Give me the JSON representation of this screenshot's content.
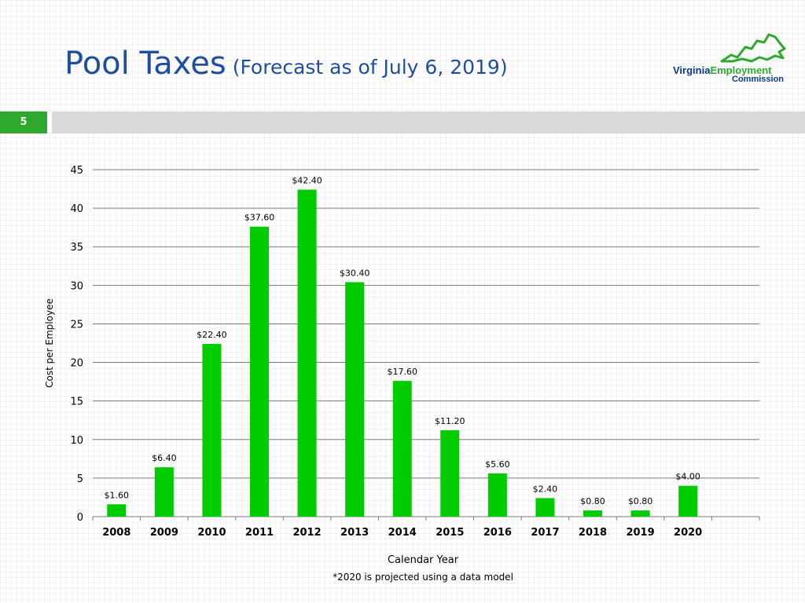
{
  "header": {
    "title_main": "Pool Taxes",
    "title_sub": "(Forecast as of July 6, 2019)",
    "slide_number": "5"
  },
  "logo": {
    "text_virginia": "Virginia",
    "text_employment": "Employment",
    "text_commission": "Commission",
    "icon": "virginia-state-outline-icon"
  },
  "colors": {
    "title": "#1f4e9e",
    "bar": "#00cc00",
    "accent": "#2fa82f",
    "band": "#d9d9d9"
  },
  "chart_data": {
    "type": "bar",
    "title": "",
    "xlabel": "Calendar Year",
    "ylabel": "Cost per Employee",
    "footnote": "*2020 is projected using a data model",
    "categories": [
      "2008",
      "2009",
      "2010",
      "2011",
      "2012",
      "2013",
      "2014",
      "2015",
      "2016",
      "2017",
      "2018",
      "2019",
      "2020"
    ],
    "values": [
      1.6,
      6.4,
      22.4,
      37.6,
      42.4,
      30.4,
      17.6,
      11.2,
      5.6,
      2.4,
      0.8,
      0.8,
      4.0
    ],
    "labels": [
      "$1.60",
      "$6.40",
      "$22.40",
      "$37.60",
      "$42.40",
      "$30.40",
      "$17.60",
      "$11.20",
      "$5.60",
      "$2.40",
      "$0.80",
      "$0.80",
      "$4.00"
    ],
    "yticks": [
      0,
      5,
      10,
      15,
      20,
      25,
      30,
      35,
      40,
      45
    ],
    "ylim": [
      0,
      45
    ],
    "grid": true
  }
}
